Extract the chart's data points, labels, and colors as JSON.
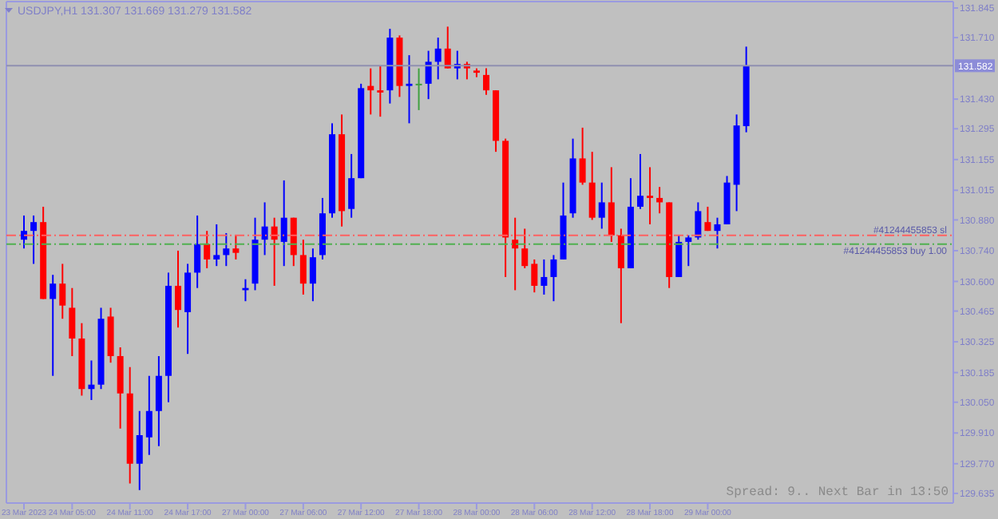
{
  "chart_data": {
    "type": "candlestick",
    "title": "USDJPY,H1  131.307 131.669 131.279 131.582",
    "annotations": [
      "Spread: 9.. Next Bar in 13:50"
    ],
    "categories": [
      "23 Mar 2023",
      null,
      null,
      null,
      null,
      "24 Mar 05:00",
      null,
      null,
      null,
      null,
      null,
      "24 Mar 11:00",
      null,
      null,
      null,
      null,
      null,
      "24 Mar 17:00",
      null,
      null,
      null,
      null,
      null,
      "27 Mar 00:00",
      null,
      null,
      null,
      null,
      null,
      "27 Mar 06:00",
      null,
      null,
      null,
      null,
      null,
      "27 Mar 12:00",
      null,
      null,
      null,
      null,
      null,
      "27 Mar 18:00",
      null,
      null,
      null,
      null,
      null,
      "28 Mar 00:00",
      null,
      null,
      null,
      null,
      null,
      "28 Mar 06:00",
      null,
      null,
      null,
      null,
      null,
      "28 Mar 12:00",
      null,
      null,
      null,
      null,
      null,
      "28 Mar 18:00",
      null,
      null,
      null,
      null,
      null,
      "29 Mar 00:00",
      null,
      null,
      null,
      null,
      null,
      null,
      null,
      null,
      null,
      null,
      null,
      null,
      null,
      null,
      null,
      null,
      null,
      null,
      null,
      null,
      null,
      null,
      null,
      null,
      null
    ],
    "ohlc": [
      [
        130.79,
        130.9,
        130.75,
        130.83
      ],
      [
        130.83,
        130.9,
        130.68,
        130.87
      ],
      [
        130.87,
        130.94,
        130.52,
        130.52
      ],
      [
        130.52,
        130.63,
        130.17,
        130.59
      ],
      [
        130.59,
        130.68,
        130.43,
        130.49
      ],
      [
        130.48,
        130.57,
        130.26,
        130.34
      ],
      [
        130.34,
        130.41,
        130.08,
        130.11
      ],
      [
        130.11,
        130.24,
        130.06,
        130.13
      ],
      [
        130.13,
        130.48,
        130.11,
        130.43
      ],
      [
        130.44,
        130.48,
        130.23,
        130.26
      ],
      [
        130.26,
        130.3,
        129.93,
        130.09
      ],
      [
        130.09,
        130.21,
        129.68,
        129.77
      ],
      [
        129.77,
        130.01,
        129.65,
        129.9
      ],
      [
        129.89,
        130.17,
        129.81,
        130.01
      ],
      [
        130.01,
        130.26,
        129.85,
        130.17
      ],
      [
        130.17,
        130.64,
        130.05,
        130.58
      ],
      [
        130.58,
        130.74,
        130.39,
        130.47
      ],
      [
        130.46,
        130.68,
        130.27,
        130.64
      ],
      [
        130.64,
        130.9,
        130.57,
        130.77
      ],
      [
        130.77,
        130.83,
        130.66,
        130.7
      ],
      [
        130.7,
        130.86,
        130.67,
        130.72
      ],
      [
        130.72,
        130.82,
        130.67,
        130.75
      ],
      [
        130.75,
        130.81,
        130.7,
        130.73
      ],
      [
        130.56,
        130.61,
        130.51,
        130.57
      ],
      [
        130.59,
        130.89,
        130.56,
        130.79
      ],
      [
        130.79,
        130.96,
        130.72,
        130.85
      ],
      [
        130.85,
        130.89,
        130.58,
        130.79
      ],
      [
        130.78,
        131.06,
        130.67,
        130.89
      ],
      [
        130.89,
        130.89,
        130.67,
        130.72
      ],
      [
        130.72,
        130.79,
        130.54,
        130.59
      ],
      [
        130.59,
        130.75,
        130.51,
        130.71
      ],
      [
        130.72,
        130.98,
        130.7,
        130.91
      ],
      [
        130.91,
        131.32,
        130.89,
        131.27
      ],
      [
        131.27,
        131.36,
        130.85,
        130.92
      ],
      [
        130.93,
        131.18,
        130.89,
        131.07
      ],
      [
        131.07,
        131.5,
        131.07,
        131.48
      ],
      [
        131.49,
        131.57,
        131.36,
        131.47
      ],
      [
        131.47,
        131.58,
        131.35,
        131.46
      ],
      [
        131.47,
        131.75,
        131.41,
        131.71
      ],
      [
        131.71,
        131.72,
        131.44,
        131.49
      ],
      [
        131.49,
        131.63,
        131.32,
        131.5
      ],
      [
        131.5,
        131.57,
        131.38,
        131.5
      ],
      [
        131.5,
        131.65,
        131.43,
        131.6
      ],
      [
        131.6,
        131.71,
        131.52,
        131.66
      ],
      [
        131.66,
        131.76,
        131.57,
        131.57
      ],
      [
        131.57,
        131.65,
        131.52,
        131.59
      ],
      [
        131.59,
        131.6,
        131.52,
        131.57
      ],
      [
        131.56,
        131.57,
        131.53,
        131.55
      ],
      [
        131.54,
        131.57,
        131.45,
        131.47
      ],
      [
        131.47,
        131.47,
        131.19,
        131.24
      ],
      [
        131.24,
        131.25,
        130.62,
        130.8
      ],
      [
        130.79,
        130.89,
        130.56,
        130.75
      ],
      [
        130.75,
        130.84,
        130.66,
        130.67
      ],
      [
        130.68,
        130.7,
        130.55,
        130.58
      ],
      [
        130.58,
        130.7,
        130.54,
        130.62
      ],
      [
        130.62,
        130.72,
        130.51,
        130.7
      ],
      [
        130.7,
        131.05,
        130.7,
        130.9
      ],
      [
        130.91,
        131.25,
        130.89,
        131.16
      ],
      [
        131.16,
        131.3,
        131.04,
        131.05
      ],
      [
        131.05,
        131.19,
        130.88,
        130.89
      ],
      [
        130.89,
        131.05,
        130.84,
        130.96
      ],
      [
        130.96,
        131.12,
        130.78,
        130.81
      ],
      [
        130.81,
        130.84,
        130.41,
        130.66
      ],
      [
        130.66,
        131.07,
        130.66,
        130.94
      ],
      [
        130.94,
        131.18,
        130.93,
        130.99
      ],
      [
        130.99,
        131.12,
        130.86,
        130.98
      ],
      [
        130.98,
        131.03,
        130.91,
        130.96
      ],
      [
        130.96,
        130.96,
        130.57,
        130.62
      ],
      [
        130.62,
        130.81,
        130.62,
        130.78
      ],
      [
        130.78,
        130.81,
        130.67,
        130.8
      ],
      [
        130.8,
        130.96,
        130.79,
        130.92
      ],
      [
        130.87,
        130.94,
        130.83,
        130.83
      ],
      [
        130.83,
        130.89,
        130.75,
        130.86
      ],
      [
        130.86,
        131.08,
        130.86,
        131.05
      ],
      [
        131.04,
        131.36,
        130.92,
        131.31
      ],
      [
        131.307,
        131.669,
        131.279,
        131.582
      ],
      null,
      null,
      null,
      null,
      null,
      null,
      null,
      null,
      null,
      null,
      null,
      null,
      null,
      null,
      null,
      null,
      null,
      null,
      null,
      null,
      null
    ],
    "colors": [
      "#0000ff",
      "#0000ff",
      "#ff0000",
      "#0000ff",
      "#ff0000",
      "#ff0000",
      "#ff0000",
      "#0000ff",
      "#0000ff",
      "#ff0000",
      "#ff0000",
      "#ff0000",
      "#0000ff",
      "#0000ff",
      "#0000ff",
      "#0000ff",
      "#ff0000",
      "#0000ff",
      "#0000ff",
      "#ff0000",
      "#0000ff",
      "#0000ff",
      "#ff0000",
      "#0000ff",
      "#0000ff",
      "#0000ff",
      "#ff0000",
      "#0000ff",
      "#ff0000",
      "#ff0000",
      "#0000ff",
      "#0000ff",
      "#0000ff",
      "#ff0000",
      "#0000ff",
      "#0000ff",
      "#ff0000",
      "#ff0000",
      "#0000ff",
      "#ff0000",
      "#0000ff",
      "#40a040",
      "#0000ff",
      "#0000ff",
      "#ff0000",
      "#0000ff",
      "#ff0000",
      "#ff0000",
      "#ff0000",
      "#ff0000",
      "#ff0000",
      "#ff0000",
      "#ff0000",
      "#ff0000",
      "#0000ff",
      "#0000ff",
      "#0000ff",
      "#0000ff",
      "#ff0000",
      "#ff0000",
      "#0000ff",
      "#ff0000",
      "#ff0000",
      "#0000ff",
      "#0000ff",
      "#ff0000",
      "#ff0000",
      "#ff0000",
      "#0000ff",
      "#0000ff",
      "#0000ff",
      "#ff0000",
      "#0000ff",
      "#0000ff",
      "#0000ff",
      "#0000ff",
      null,
      null,
      null,
      null,
      null,
      null,
      null,
      null,
      null,
      null,
      null,
      null,
      null,
      null,
      null,
      null,
      null,
      null,
      null,
      null,
      null
    ],
    "ylim": [
      129.591,
      131.874
    ],
    "yticks": [
      129.635,
      {
        "value": 129.77,
        "label": "129.770"
      },
      {
        "value": 129.91,
        "label": "129.910"
      },
      {
        "value": 130.05,
        "label": "130.050"
      },
      130.185,
      130.325,
      130.465,
      {
        "value": 130.6,
        "label": "130.600"
      },
      {
        "value": 130.74,
        "label": "130.740"
      },
      {
        "value": 130.88,
        "label": "130.880"
      },
      131.015,
      131.155,
      131.295,
      {
        "value": 131.43,
        "label": "131.430"
      },
      {
        "value": 131.71,
        "label": "131.710"
      },
      131.845
    ],
    "ref_lines": [
      {
        "axis": "y",
        "value": 130.81,
        "label": "#41244455853 sl",
        "color": "#ff6060",
        "line_style": "dashdot"
      },
      {
        "axis": "y",
        "value": 130.77,
        "label": "#41244455853 buy 1.00",
        "color": "#50b050",
        "line_style": "dashdot"
      },
      {
        "axis": "y",
        "value": 131.582,
        "label": "131.582",
        "color": "#9090b0",
        "line_style": "solid"
      }
    ]
  }
}
